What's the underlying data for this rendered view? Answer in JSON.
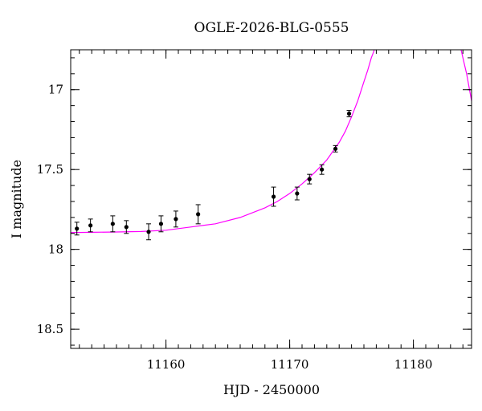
{
  "chart_data": {
    "type": "scatter",
    "title": "OGLE-2026-BLG-0555",
    "xlabel": "HJD - 2450000",
    "ylabel": "I magnitude",
    "xlim": [
      11152.3,
      11184.7
    ],
    "ylim": [
      18.62,
      16.75
    ],
    "y_inverted": true,
    "x_ticks": [
      11160,
      11170,
      11180
    ],
    "y_ticks": [
      17,
      17.5,
      18,
      18.5
    ],
    "x_ticks_minor_step": 1,
    "y_ticks_minor_step": 0.1,
    "grid": false,
    "marker_color": "#000000",
    "model_color": "#ff00ff",
    "points": [
      {
        "x": 11152.8,
        "y": 17.87,
        "err": 0.04
      },
      {
        "x": 11153.9,
        "y": 17.85,
        "err": 0.04
      },
      {
        "x": 11155.7,
        "y": 17.84,
        "err": 0.05
      },
      {
        "x": 11156.8,
        "y": 17.86,
        "err": 0.04
      },
      {
        "x": 11158.6,
        "y": 17.89,
        "err": 0.05
      },
      {
        "x": 11159.6,
        "y": 17.84,
        "err": 0.05
      },
      {
        "x": 11160.8,
        "y": 17.81,
        "err": 0.05
      },
      {
        "x": 11162.6,
        "y": 17.78,
        "err": 0.06
      },
      {
        "x": 11168.7,
        "y": 17.67,
        "err": 0.06
      },
      {
        "x": 11170.6,
        "y": 17.65,
        "err": 0.04
      },
      {
        "x": 11171.6,
        "y": 17.56,
        "err": 0.03
      },
      {
        "x": 11172.6,
        "y": 17.5,
        "err": 0.03
      },
      {
        "x": 11173.7,
        "y": 17.37,
        "err": 0.02
      },
      {
        "x": 11174.8,
        "y": 17.15,
        "err": 0.02
      }
    ],
    "model": {
      "x": [
        11152.3,
        11154,
        11156,
        11158,
        11160,
        11162,
        11164,
        11166,
        11168,
        11169,
        11170,
        11171,
        11172,
        11173,
        11174,
        11174.5,
        11175,
        11175.5,
        11176,
        11176.3,
        11176.6,
        11176.8,
        11177,
        11177.3,
        11177.5,
        11183,
        11183.5,
        11184,
        11184.3,
        11184.7
      ],
      "y": [
        17.895,
        17.893,
        17.891,
        17.888,
        17.88,
        17.86,
        17.84,
        17.8,
        17.74,
        17.7,
        17.65,
        17.59,
        17.52,
        17.44,
        17.33,
        17.26,
        17.17,
        17.07,
        16.95,
        16.88,
        16.8,
        16.76,
        16.7,
        16.6,
        16.5,
        16.5,
        16.63,
        16.8,
        16.9,
        17.07
      ]
    }
  }
}
